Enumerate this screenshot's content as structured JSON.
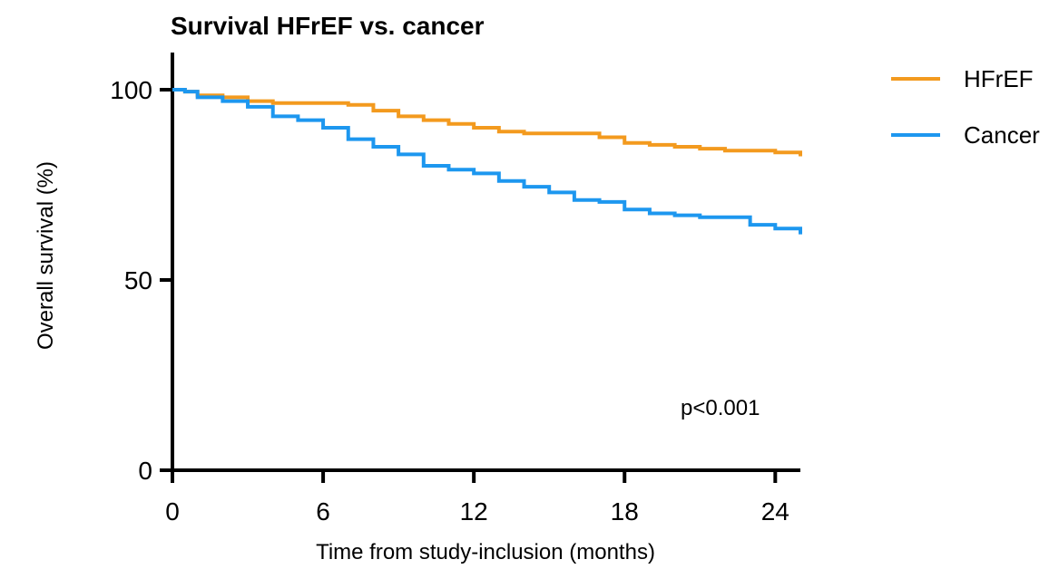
{
  "chart_data": {
    "type": "line",
    "title": "Survival HFrEF vs. cancer",
    "xlabel": "Time from study-inclusion (months)",
    "ylabel": "Overall survival (%)",
    "xlim": [
      0,
      25
    ],
    "ylim": [
      0,
      100
    ],
    "x_ticks": [
      0,
      6,
      12,
      18,
      24
    ],
    "y_ticks": [
      0,
      50,
      100
    ],
    "grid": false,
    "legend_position": "top-right",
    "annotation": "p<0.001",
    "series": [
      {
        "name": "HFrEF",
        "color": "#f39a1e",
        "x": [
          0,
          0.5,
          1,
          2,
          3,
          4,
          5,
          6,
          7,
          8,
          9,
          10,
          11,
          12,
          13,
          14,
          15,
          16,
          17,
          18,
          19,
          20,
          21,
          22,
          23,
          24,
          25
        ],
        "y": [
          100,
          99.5,
          98.5,
          98,
          97,
          96.5,
          96.5,
          96.5,
          96,
          94.5,
          93,
          92,
          91,
          90,
          89,
          88.5,
          88.5,
          88.5,
          87.5,
          86,
          85.5,
          85,
          84.5,
          84,
          84,
          83.5,
          82.5
        ]
      },
      {
        "name": "Cancer",
        "color": "#1d97ef",
        "x": [
          0,
          0.5,
          1,
          2,
          3,
          4,
          5,
          6,
          7,
          8,
          9,
          10,
          11,
          12,
          13,
          14,
          15,
          16,
          17,
          18,
          19,
          20,
          21,
          22,
          23,
          24,
          25
        ],
        "y": [
          100,
          99.5,
          98,
          97,
          95.5,
          93,
          92,
          90,
          87,
          85,
          83,
          80,
          79,
          78,
          76,
          74.5,
          73,
          71,
          70.5,
          68.5,
          67.5,
          67,
          66.5,
          66.5,
          64.5,
          63.5,
          62
        ]
      }
    ]
  }
}
